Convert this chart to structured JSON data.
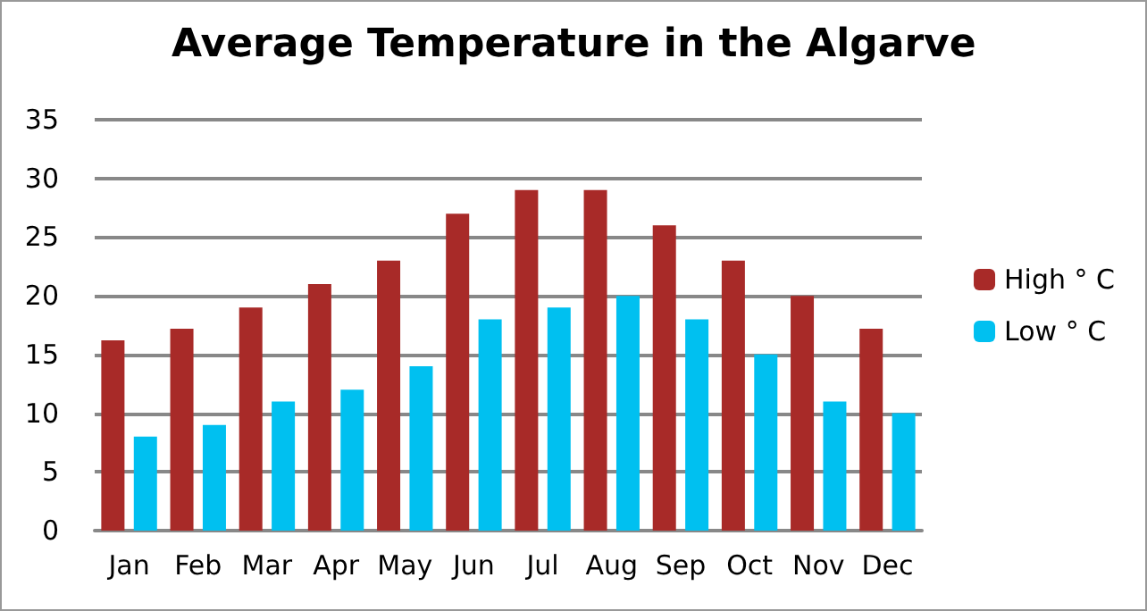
{
  "chart_data": {
    "type": "bar",
    "title": "Average Temperature in the Algarve",
    "categories": [
      "Jan",
      "Feb",
      "Mar",
      "Apr",
      "May",
      "Jun",
      "Jul",
      "Aug",
      "Sep",
      "Oct",
      "Nov",
      "Dec"
    ],
    "series": [
      {
        "name": "High ° C",
        "color": "#a82a28",
        "values": [
          16.2,
          17.2,
          19,
          21,
          23,
          27,
          29,
          29,
          26,
          23,
          20,
          17.2
        ]
      },
      {
        "name": "Low ° C",
        "color": "#00c0f0",
        "values": [
          8,
          9,
          11,
          12,
          14,
          18,
          19,
          20,
          18,
          15,
          11,
          10
        ]
      }
    ],
    "ylim": [
      0,
      35
    ],
    "yticks": [
      0,
      5,
      10,
      15,
      20,
      25,
      30,
      35
    ],
    "grid": "y",
    "legend": "right"
  }
}
